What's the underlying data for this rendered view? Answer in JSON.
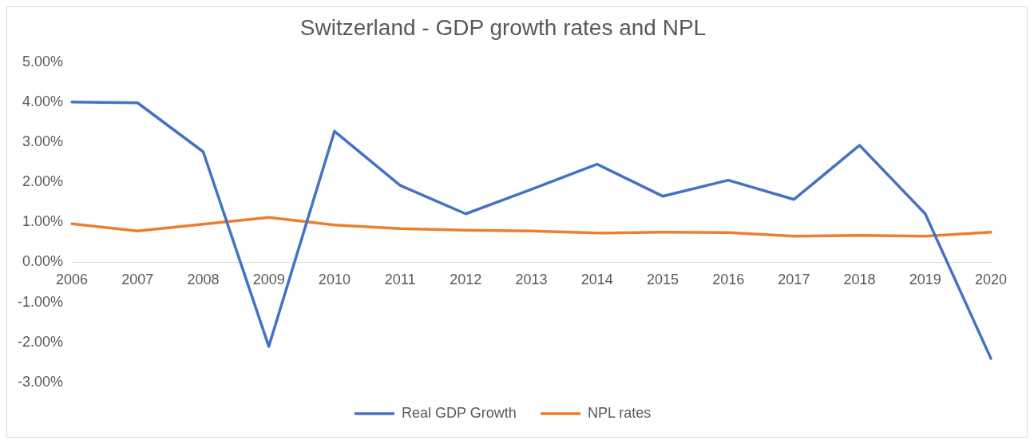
{
  "chart_data": {
    "type": "line",
    "title": "Switzerland - GDP growth rates and NPL",
    "categories": [
      "2006",
      "2007",
      "2008",
      "2009",
      "2010",
      "2011",
      "2012",
      "2013",
      "2014",
      "2015",
      "2016",
      "2017",
      "2018",
      "2019",
      "2020"
    ],
    "series": [
      {
        "name": "Real GDP Growth",
        "color": "#4472c4",
        "values": [
          4.0,
          3.98,
          2.76,
          -2.1,
          3.27,
          1.92,
          1.21,
          1.82,
          2.45,
          1.65,
          2.05,
          1.57,
          2.92,
          1.21,
          -2.4
        ]
      },
      {
        "name": "NPL rates",
        "color": "#ed7d31",
        "values": [
          0.96,
          0.78,
          0.95,
          1.12,
          0.93,
          0.84,
          0.8,
          0.78,
          0.73,
          0.75,
          0.74,
          0.65,
          0.67,
          0.65,
          0.75
        ]
      }
    ],
    "ylim": [
      -3,
      5
    ],
    "yticks": [
      {
        "value": -3,
        "label": "-3.00%"
      },
      {
        "value": -2,
        "label": "-2.00%"
      },
      {
        "value": -1,
        "label": "-1.00%"
      },
      {
        "value": 0,
        "label": "0.00%"
      },
      {
        "value": 1,
        "label": "1.00%"
      },
      {
        "value": 2,
        "label": "2.00%"
      },
      {
        "value": 3,
        "label": "3.00%"
      },
      {
        "value": 4,
        "label": "4.00%"
      },
      {
        "value": 5,
        "label": "5.00%"
      }
    ],
    "grid": false,
    "legend": "bottom",
    "marker": "none",
    "line_style": "solid"
  }
}
